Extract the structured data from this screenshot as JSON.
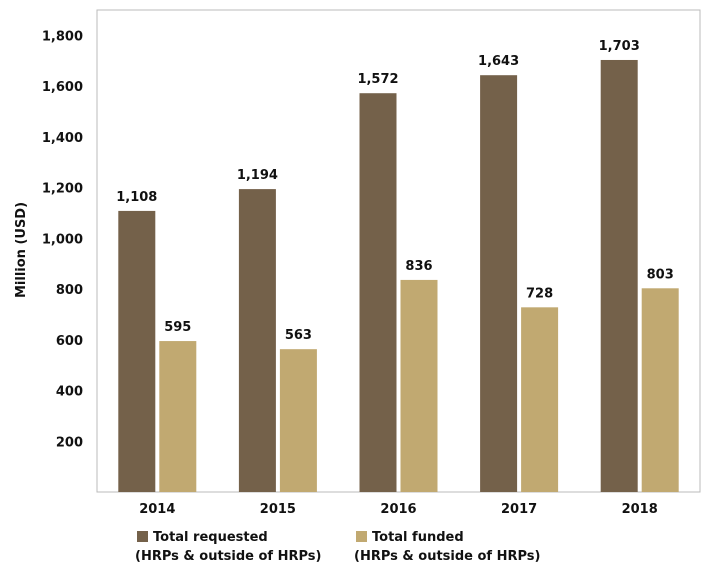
{
  "chart_data": {
    "type": "bar",
    "categories": [
      "2014",
      "2015",
      "2016",
      "2017",
      "2018"
    ],
    "series": [
      {
        "name": "Total requested",
        "name_line2": "(HRPs & outside of HRPs)",
        "values": [
          1108,
          1194,
          1572,
          1643,
          1703
        ],
        "value_labels": [
          "1,108",
          "1,194",
          "1,572",
          "1,643",
          "1,703"
        ],
        "color": "#74614A"
      },
      {
        "name": "Total funded",
        "name_line2": "(HRPs & outside of HRPs)",
        "values": [
          595,
          563,
          836,
          728,
          803
        ],
        "value_labels": [
          "595",
          "563",
          "836",
          "728",
          "803"
        ],
        "color": "#C1A971"
      }
    ],
    "title": "",
    "xlabel": "",
    "ylabel": "Million (USD)",
    "ylim": [
      0,
      1900
    ],
    "yticks": [
      200,
      400,
      600,
      800,
      1000,
      1200,
      1400,
      1600,
      1800
    ],
    "ytick_labels": [
      "200",
      "400",
      "600",
      "800",
      "1,000",
      "1,200",
      "1,400",
      "1,600",
      "1,800"
    ],
    "grid": false,
    "legend": "bottom"
  }
}
